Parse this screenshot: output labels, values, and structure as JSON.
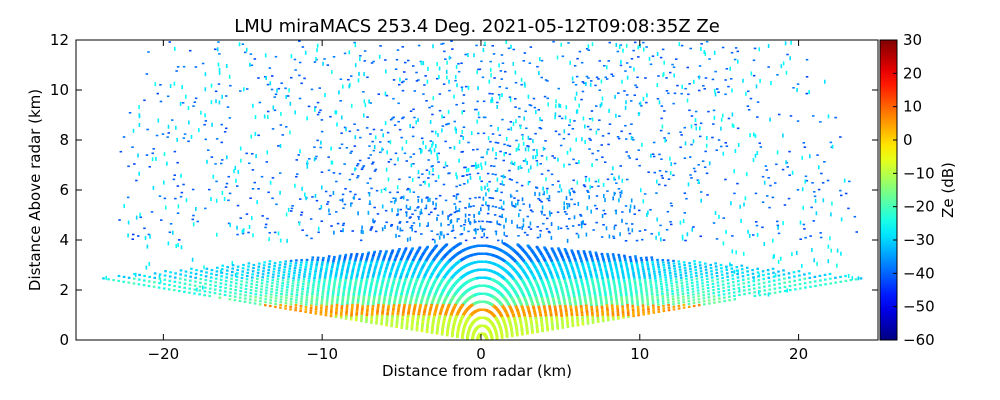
{
  "chart_data": {
    "type": "heatmap",
    "title": "LMU miraMACS 253.4 Deg. 2021-05-12T09:08:35Z  Ze",
    "xlabel": "Distance from radar (km)",
    "ylabel": "Distance Above radar  (km)",
    "xlim": [
      -25.5,
      25
    ],
    "ylim": [
      0,
      12
    ],
    "x_ticks": [
      "−20",
      "−10",
      "0",
      "10",
      "20"
    ],
    "y_ticks": [
      "0",
      "2",
      "4",
      "6",
      "8",
      "10",
      "12"
    ],
    "colorbar": {
      "label": "Ze (dB)",
      "colormap": "jet",
      "range": [
        -60,
        30
      ],
      "ticks": [
        "30",
        "20",
        "10",
        "0",
        "−10",
        "−20",
        "−30",
        "−40",
        "−50",
        "−60"
      ]
    },
    "scan": {
      "elevation_min_deg": 6,
      "elevation_max_deg": 174,
      "max_range_km": 24
    },
    "reflectivity_profile": [
      {
        "height_km": [
          0,
          1.0
        ],
        "ze_db": -8
      },
      {
        "height_km": [
          1.0,
          1.45
        ],
        "ze_db": 5
      },
      {
        "height_km": [
          1.45,
          1.8
        ],
        "ze_db": -18
      },
      {
        "height_km": [
          1.8,
          2.5
        ],
        "ze_db": -22
      },
      {
        "height_km": [
          2.5,
          3.2
        ],
        "ze_db": -30
      },
      {
        "height_km": [
          3.2,
          4.0
        ],
        "ze_db": -38
      },
      {
        "height_km": [
          4.0,
          12.0
        ],
        "ze_db": -40,
        "sparse": true
      }
    ],
    "clear_air_noise_db": -27
  }
}
